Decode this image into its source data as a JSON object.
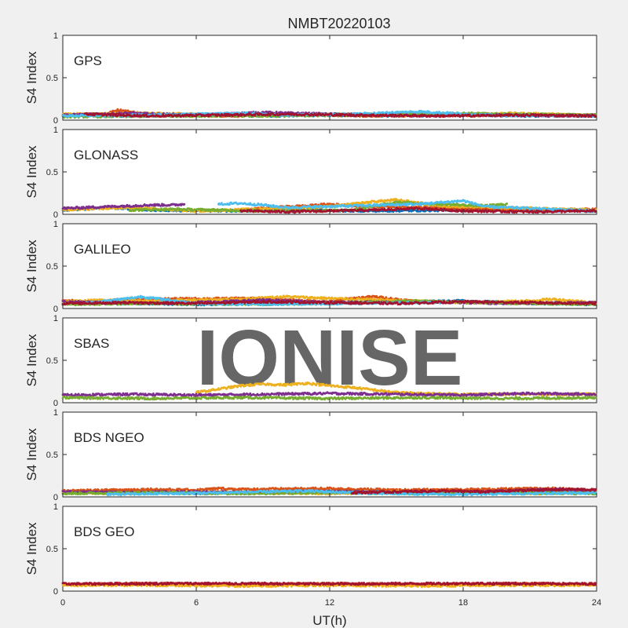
{
  "chart_data": {
    "type": "scatter",
    "title": "NMBT20220103",
    "xlabel": "UT(h)",
    "ylabel": "S4 Index",
    "xlim": [
      0,
      24
    ],
    "ylim": [
      0,
      1
    ],
    "xticks": [
      "0",
      "6",
      "12",
      "18",
      "24"
    ],
    "yticks": [
      "0",
      "0.5",
      "1"
    ],
    "watermark": "IONISE",
    "watermark_panel": 3,
    "grid": false,
    "colors": [
      "#0072BD",
      "#D95319",
      "#EDB120",
      "#7E2F8E",
      "#77AC30",
      "#4DBEEE",
      "#A2142F"
    ],
    "panels": [
      {
        "label": "GPS",
        "series": [
          {
            "color": "#0072BD",
            "x": [
              0,
              3,
              6,
              9,
              12,
              15,
              18,
              21,
              24
            ],
            "y": [
              0.06,
              0.05,
              0.06,
              0.05,
              0.06,
              0.05,
              0.06,
              0.05,
              0.06
            ]
          },
          {
            "color": "#D95319",
            "x": [
              0,
              2,
              2.5,
              4,
              8,
              10,
              14,
              20,
              24
            ],
            "y": [
              0.05,
              0.08,
              0.12,
              0.06,
              0.05,
              0.07,
              0.05,
              0.06,
              0.05
            ]
          },
          {
            "color": "#EDB120",
            "x": [
              0,
              4,
              8,
              12,
              16,
              20,
              24
            ],
            "y": [
              0.07,
              0.08,
              0.06,
              0.07,
              0.06,
              0.08,
              0.06
            ]
          },
          {
            "color": "#7E2F8E",
            "x": [
              0,
              3,
              6,
              9,
              12,
              15,
              18,
              22,
              24
            ],
            "y": [
              0.06,
              0.08,
              0.06,
              0.09,
              0.07,
              0.06,
              0.07,
              0.05,
              0.06
            ]
          },
          {
            "color": "#77AC30",
            "x": [
              0,
              5,
              10,
              15,
              18,
              20,
              24
            ],
            "y": [
              0.04,
              0.05,
              0.05,
              0.07,
              0.08,
              0.07,
              0.06
            ]
          },
          {
            "color": "#4DBEEE",
            "x": [
              0,
              4,
              8,
              10,
              13,
              16,
              19,
              24
            ],
            "y": [
              0.05,
              0.06,
              0.08,
              0.06,
              0.07,
              0.1,
              0.06,
              0.05
            ]
          },
          {
            "color": "#A2142F",
            "x": [
              1,
              4,
              7,
              10,
              13,
              17,
              21,
              24
            ],
            "y": [
              0.07,
              0.05,
              0.06,
              0.07,
              0.06,
              0.05,
              0.06,
              0.05
            ]
          }
        ]
      },
      {
        "label": "GLONASS",
        "series": [
          {
            "color": "#0072BD",
            "x": [
              0,
              2,
              4,
              7,
              10,
              14,
              18,
              21,
              24
            ],
            "y": [
              0.05,
              0.08,
              0.05,
              0.04,
              0.05,
              0.04,
              0.05,
              0.05,
              0.04
            ]
          },
          {
            "color": "#D95319",
            "x": [
              8,
              9,
              10,
              11,
              12,
              13,
              21,
              24
            ],
            "y": [
              0.05,
              0.07,
              0.09,
              0.1,
              0.12,
              0.1,
              0.05,
              0.06
            ]
          },
          {
            "color": "#EDB120",
            "x": [
              0,
              3,
              6,
              10,
              12,
              13,
              14,
              15,
              17,
              24
            ],
            "y": [
              0.05,
              0.08,
              0.04,
              0.07,
              0.09,
              0.12,
              0.15,
              0.17,
              0.1,
              0.05
            ]
          },
          {
            "color": "#7E2F8E",
            "x": [
              0,
              1,
              2,
              3,
              4,
              5,
              5.5
            ],
            "y": [
              0.07,
              0.08,
              0.09,
              0.1,
              0.11,
              0.11,
              0.12
            ]
          },
          {
            "color": "#77AC30",
            "x": [
              3,
              5,
              7,
              9,
              13,
              15,
              17,
              19,
              20
            ],
            "y": [
              0.05,
              0.06,
              0.05,
              0.04,
              0.05,
              0.14,
              0.12,
              0.1,
              0.12
            ]
          },
          {
            "color": "#4DBEEE",
            "x": [
              7,
              8,
              9,
              10,
              16,
              17,
              18,
              19,
              24
            ],
            "y": [
              0.12,
              0.13,
              0.11,
              0.08,
              0.12,
              0.14,
              0.16,
              0.09,
              0.04
            ]
          },
          {
            "color": "#A2142F",
            "x": [
              8,
              10,
              12,
              14,
              16,
              18,
              21,
              24
            ],
            "y": [
              0.04,
              0.03,
              0.04,
              0.05,
              0.07,
              0.04,
              0.03,
              0.04
            ]
          }
        ]
      },
      {
        "label": "GALILEO",
        "series": [
          {
            "color": "#0072BD",
            "x": [
              0,
              3,
              6,
              9,
              12,
              15,
              18,
              21,
              24
            ],
            "y": [
              0.07,
              0.06,
              0.05,
              0.06,
              0.07,
              0.08,
              0.09,
              0.06,
              0.05
            ]
          },
          {
            "color": "#D95319",
            "x": [
              0,
              1,
              2,
              3,
              9,
              10,
              12,
              13,
              14,
              16,
              24
            ],
            "y": [
              0.1,
              0.08,
              0.09,
              0.11,
              0.12,
              0.1,
              0.08,
              0.12,
              0.14,
              0.08,
              0.06
            ]
          },
          {
            "color": "#EDB120",
            "x": [
              0,
              2,
              4,
              8,
              10,
              12,
              18,
              21,
              22,
              24
            ],
            "y": [
              0.08,
              0.1,
              0.09,
              0.11,
              0.14,
              0.12,
              0.07,
              0.09,
              0.11,
              0.07
            ]
          },
          {
            "color": "#7E2F8E",
            "x": [
              0,
              2,
              4,
              7,
              9,
              12,
              16,
              20,
              24
            ],
            "y": [
              0.08,
              0.07,
              0.06,
              0.08,
              0.1,
              0.07,
              0.08,
              0.06,
              0.07
            ]
          },
          {
            "color": "#77AC30",
            "x": [
              0,
              4,
              8,
              12,
              16,
              19,
              21,
              24
            ],
            "y": [
              0.05,
              0.06,
              0.05,
              0.06,
              0.09,
              0.07,
              0.06,
              0.05
            ]
          },
          {
            "color": "#4DBEEE",
            "x": [
              1,
              2,
              3,
              3.5,
              6,
              9,
              13,
              17
            ],
            "y": [
              0.06,
              0.09,
              0.12,
              0.14,
              0.06,
              0.05,
              0.06,
              0.07
            ]
          },
          {
            "color": "#A2142F",
            "x": [
              0,
              3,
              6,
              9,
              12,
              15,
              18,
              21,
              24
            ],
            "y": [
              0.06,
              0.07,
              0.06,
              0.08,
              0.07,
              0.06,
              0.08,
              0.07,
              0.06
            ]
          }
        ]
      },
      {
        "label": "SBAS",
        "series": [
          {
            "color": "#EDB120",
            "x": [
              6,
              7,
              8,
              9,
              10,
              11,
              12,
              13,
              14,
              15,
              16,
              18,
              24
            ],
            "y": [
              0.12,
              0.16,
              0.2,
              0.22,
              0.21,
              0.23,
              0.2,
              0.18,
              0.15,
              0.12,
              0.11,
              0.1,
              0.1
            ]
          },
          {
            "color": "#7E2F8E",
            "x": [
              0,
              3,
              6,
              9,
              12,
              15,
              18,
              21,
              24
            ],
            "y": [
              0.09,
              0.1,
              0.09,
              0.1,
              0.11,
              0.1,
              0.09,
              0.11,
              0.1
            ]
          },
          {
            "color": "#77AC30",
            "x": [
              0,
              4,
              8,
              12,
              16,
              20,
              24
            ],
            "y": [
              0.06,
              0.05,
              0.06,
              0.05,
              0.06,
              0.05,
              0.06
            ]
          }
        ]
      },
      {
        "label": "BDS NGEO",
        "series": [
          {
            "color": "#0072BD",
            "x": [
              0,
              3,
              6,
              9,
              12,
              15,
              18,
              21,
              24
            ],
            "y": [
              0.05,
              0.06,
              0.04,
              0.06,
              0.07,
              0.06,
              0.04,
              0.07,
              0.05
            ]
          },
          {
            "color": "#D95319",
            "x": [
              0,
              2,
              4,
              6,
              7,
              8,
              12,
              15,
              19,
              22,
              24
            ],
            "y": [
              0.07,
              0.08,
              0.09,
              0.08,
              0.1,
              0.09,
              0.1,
              0.08,
              0.09,
              0.1,
              0.08
            ]
          },
          {
            "color": "#EDB120",
            "x": [
              0,
              3,
              6,
              9,
              12,
              15,
              18,
              21,
              24
            ],
            "y": [
              0.05,
              0.04,
              0.06,
              0.05,
              0.04,
              0.06,
              0.05,
              0.04,
              0.05
            ]
          },
          {
            "color": "#7E2F8E",
            "x": [
              0,
              3,
              6,
              9,
              13,
              16,
              19,
              22,
              24
            ],
            "y": [
              0.06,
              0.05,
              0.06,
              0.05,
              0.06,
              0.05,
              0.06,
              0.09,
              0.08
            ]
          },
          {
            "color": "#77AC30",
            "x": [
              0,
              4,
              8,
              12,
              16,
              20,
              24
            ],
            "y": [
              0.04,
              0.05,
              0.04,
              0.05,
              0.04,
              0.05,
              0.04
            ]
          },
          {
            "color": "#4DBEEE",
            "x": [
              2,
              5,
              9,
              11,
              14,
              18,
              24
            ],
            "y": [
              0.03,
              0.04,
              0.06,
              0.07,
              0.04,
              0.03,
              0.05
            ]
          },
          {
            "color": "#A2142F",
            "x": [
              13,
              15,
              17,
              19,
              21,
              23,
              24
            ],
            "y": [
              0.05,
              0.06,
              0.07,
              0.06,
              0.08,
              0.09,
              0.08
            ]
          }
        ]
      },
      {
        "label": "BDS GEO",
        "series": [
          {
            "color": "#D95319",
            "x": [
              0,
              4,
              8,
              12,
              16,
              20,
              24
            ],
            "y": [
              0.08,
              0.09,
              0.08,
              0.09,
              0.08,
              0.09,
              0.08
            ]
          },
          {
            "color": "#EDB120",
            "x": [
              0,
              4,
              8,
              12,
              16,
              20,
              24
            ],
            "y": [
              0.07,
              0.07,
              0.06,
              0.07,
              0.06,
              0.07,
              0.07
            ]
          },
          {
            "color": "#A2142F",
            "x": [
              0,
              6,
              12,
              18,
              24
            ],
            "y": [
              0.085,
              0.09,
              0.085,
              0.09,
              0.085
            ]
          }
        ]
      }
    ]
  }
}
